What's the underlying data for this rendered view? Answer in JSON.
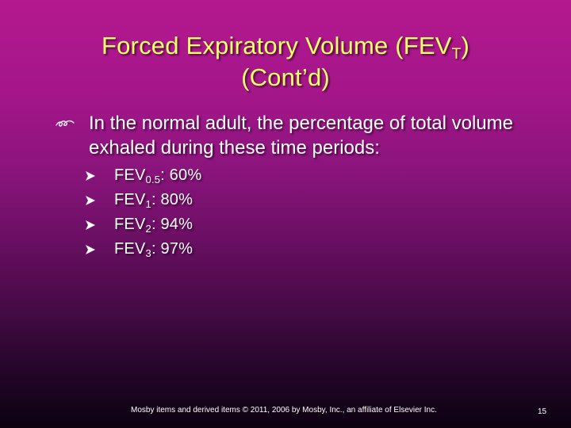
{
  "slide": {
    "title": {
      "line1_main": "Forced Expiratory Volume (FEV",
      "line1_sub": "T",
      "line1_tail": ")",
      "line2": "(Cont’d)"
    },
    "bullet": {
      "icon": "hand-writing-icon",
      "text": "In the normal adult, the percentage of total volume exhaled during these time periods:"
    },
    "sub_bullets": [
      {
        "icon": "arrow-bullet-icon",
        "prefix": "FEV",
        "subscript": "0.5",
        "value": ": 60%"
      },
      {
        "icon": "arrow-bullet-icon",
        "prefix": "FEV",
        "subscript": "1",
        "value": ": 80%"
      },
      {
        "icon": "arrow-bullet-icon",
        "prefix": "FEV",
        "subscript": "2",
        "value": ": 94%"
      },
      {
        "icon": "arrow-bullet-icon",
        "prefix": "FEV",
        "subscript": "3",
        "value": ": 97%"
      }
    ],
    "footer": "Mosby items and derived items © 2011, 2006 by Mosby, Inc., an affiliate of Elsevier Inc.",
    "page_number": "15"
  },
  "colors": {
    "title": "#ffff66",
    "text": "#ffffff",
    "background_top": "#b5188f",
    "background_bottom": "#0c0210"
  }
}
